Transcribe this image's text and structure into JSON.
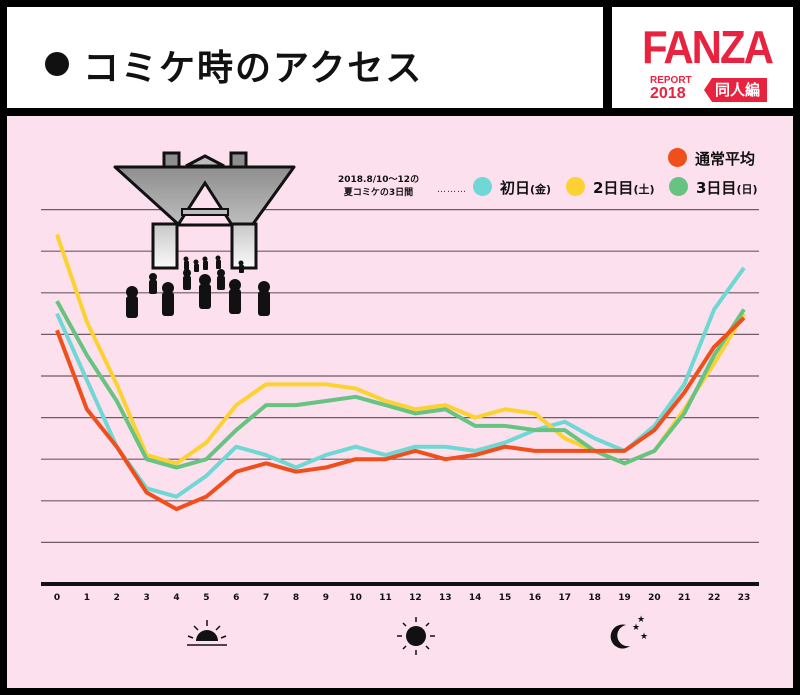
{
  "header": {
    "title": "コミケ時のアクセス",
    "logo": {
      "brand": "FANZA",
      "report_label": "REPORT",
      "year": "2018",
      "badge": "同人編"
    }
  },
  "legend": {
    "note_line1": "2018.8/10〜12の",
    "note_line2": "夏コミケの3日間",
    "leader": "………",
    "items": [
      {
        "label": "通常平均",
        "suffix": "",
        "color": "#f04e1a"
      },
      {
        "label": "初日",
        "suffix": "(金)",
        "color": "#6fd8d4"
      },
      {
        "label": "2日目",
        "suffix": "(土)",
        "color": "#fbd232"
      },
      {
        "label": "3日目",
        "suffix": "(日)",
        "color": "#66c382"
      }
    ]
  },
  "time_icons": [
    {
      "name": "sunrise-icon",
      "hour": 5
    },
    {
      "name": "sun-icon",
      "hour": 12
    },
    {
      "name": "moon-stars-icon",
      "hour": 19
    }
  ],
  "chart_data": {
    "type": "line",
    "title": "コミケ時のアクセス",
    "xlabel": "",
    "ylabel": "",
    "x": [
      "0",
      "1",
      "2",
      "3",
      "4",
      "5",
      "6",
      "7",
      "8",
      "9",
      "10",
      "11",
      "12",
      "13",
      "14",
      "15",
      "16",
      "17",
      "18",
      "19",
      "20",
      "21",
      "22",
      "23"
    ],
    "ylim": [
      0,
      9
    ],
    "y_gridlines": 9,
    "y_tick_labels": "none",
    "grid": true,
    "legend_position": "top-right",
    "series": [
      {
        "name": "通常平均",
        "color": "#f04e1a",
        "values": [
          6.1,
          4.2,
          3.3,
          2.2,
          1.8,
          2.1,
          2.7,
          2.9,
          2.7,
          2.8,
          3.0,
          3.0,
          3.2,
          3.0,
          3.1,
          3.3,
          3.2,
          3.2,
          3.2,
          3.2,
          3.7,
          4.6,
          5.7,
          6.4
        ]
      },
      {
        "name": "初日(金)",
        "color": "#6fd8d4",
        "values": [
          6.5,
          4.9,
          3.3,
          2.3,
          2.1,
          2.6,
          3.3,
          3.1,
          2.8,
          3.1,
          3.3,
          3.1,
          3.3,
          3.3,
          3.2,
          3.4,
          3.7,
          3.9,
          3.5,
          3.2,
          3.8,
          4.8,
          6.6,
          7.6
        ]
      },
      {
        "name": "2日目(土)",
        "color": "#fbd232",
        "values": [
          8.4,
          6.3,
          4.8,
          3.1,
          2.9,
          3.4,
          4.3,
          4.8,
          4.8,
          4.8,
          4.7,
          4.4,
          4.2,
          4.3,
          4.0,
          4.2,
          4.1,
          3.5,
          3.2,
          2.9,
          3.2,
          4.2,
          5.3,
          6.5
        ]
      },
      {
        "name": "3日目(日)",
        "color": "#66c382",
        "values": [
          6.8,
          5.5,
          4.4,
          3.0,
          2.8,
          3.0,
          3.7,
          4.3,
          4.3,
          4.4,
          4.5,
          4.3,
          4.1,
          4.2,
          3.8,
          3.8,
          3.7,
          3.7,
          3.2,
          2.9,
          3.2,
          4.1,
          5.5,
          6.6
        ]
      }
    ]
  }
}
